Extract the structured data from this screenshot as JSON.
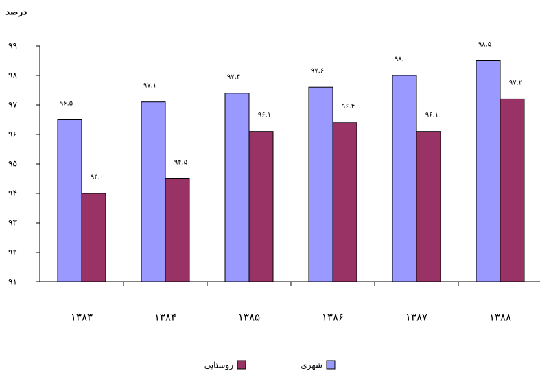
{
  "chart_data": {
    "type": "bar",
    "y_label": "درصد",
    "categories": [
      "۱۳۸۳",
      "۱۳۸۴",
      "۱۳۸۵",
      "۱۳۸۶",
      "۱۳۸۷",
      "۱۳۸۸"
    ],
    "series": [
      {
        "name": "شهری",
        "color": "#9999ff",
        "values": [
          96.5,
          97.1,
          97.4,
          97.6,
          98.0,
          98.5
        ],
        "value_labels": [
          "۹۶.۵",
          "۹۷.۱",
          "۹۷.۴",
          "۹۷.۶",
          "۹۸.۰",
          "۹۸.۵"
        ]
      },
      {
        "name": "روستایی",
        "color": "#993366",
        "values": [
          94.0,
          94.5,
          96.1,
          96.4,
          96.1,
          97.2
        ],
        "value_labels": [
          "۹۴.۰",
          "۹۴.۵",
          "۹۶.۱",
          "۹۶.۴",
          "۹۶.۱",
          "۹۷.۲"
        ]
      }
    ],
    "ylim": [
      91,
      99
    ],
    "yticks": [
      {
        "value": 91,
        "label": "۹۱"
      },
      {
        "value": 92,
        "label": "۹۲"
      },
      {
        "value": 93,
        "label": "۹۳"
      },
      {
        "value": 94,
        "label": "۹۴"
      },
      {
        "value": 95,
        "label": "۹۵"
      },
      {
        "value": 96,
        "label": "۹۶"
      },
      {
        "value": 97,
        "label": "۹۷"
      },
      {
        "value": 98,
        "label": "۹۸"
      },
      {
        "value": 99,
        "label": "۹۹"
      }
    ]
  }
}
